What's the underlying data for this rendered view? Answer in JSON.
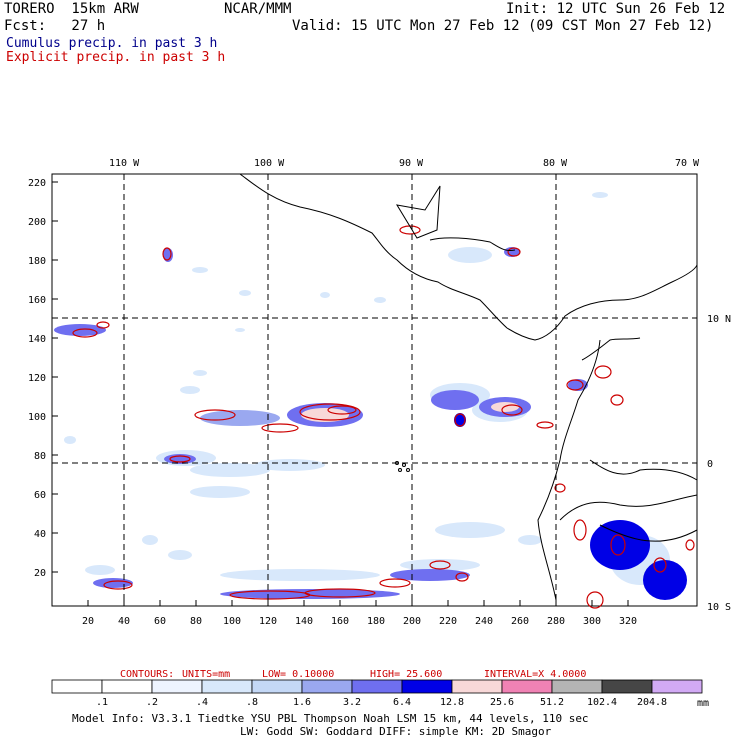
{
  "header": {
    "model": "TORERO  15km ARW",
    "center": "NCAR/MMM",
    "init": "Init: 12 UTC Sun 26 Feb 12",
    "fcst": "Fcst:   27 h",
    "valid": "Valid: 15 UTC Mon 27 Feb 12 (09 CST Mon 27 Feb 12)",
    "legend_cumulus": "Cumulus precip. in past 3 h",
    "legend_explicit": "Explicit precip. in past 3 h"
  },
  "colors": {
    "cumulus": "#00008b",
    "explicit": "#cc0000",
    "coast": "#000000"
  },
  "map": {
    "top_labels": [
      "110 W",
      "100 W",
      "90 W",
      "80 W",
      "70 W"
    ],
    "right_labels": [
      "10 N",
      "0",
      "10 S"
    ],
    "x_ticks": [
      "20",
      "40",
      "60",
      "80",
      "100",
      "120",
      "140",
      "160",
      "180",
      "200",
      "220",
      "240",
      "260",
      "280",
      "300",
      "320"
    ],
    "y_ticks": [
      "20",
      "40",
      "60",
      "80",
      "100",
      "120",
      "140",
      "160",
      "180",
      "200",
      "220"
    ]
  },
  "contours": {
    "label": "CONTOURS:",
    "units": "UNITS=mm",
    "low": "LOW= 0.10000",
    "high": "HIGH=  25.600",
    "interval": "INTERVAL=X  4.0000"
  },
  "colorbar": {
    "labels": [
      ".1",
      ".2",
      ".4",
      ".8",
      "1.6",
      "3.2",
      "6.4",
      "12.8",
      "25.6",
      "51.2",
      "102.4",
      "204.8"
    ],
    "colors": [
      "#ffffff",
      "#ffffff",
      "#eef4ff",
      "#d8e8fb",
      "#c4d8f6",
      "#9aa8f0",
      "#6f6ff0",
      "#0000e6",
      "#f8d8d8",
      "#f082b4",
      "#b4b4b4",
      "#464646",
      "#d2aaf5"
    ],
    "unit": "mm"
  },
  "footer": {
    "line1": "Model Info: V3.3.1   Tiedtke YSU PBL  Thompson    Noah LSM  15 km,   44 levels,  110 sec",
    "line2": "LW: Godd SW: Goddard DIFF: simple KM: 2D Smagor"
  }
}
